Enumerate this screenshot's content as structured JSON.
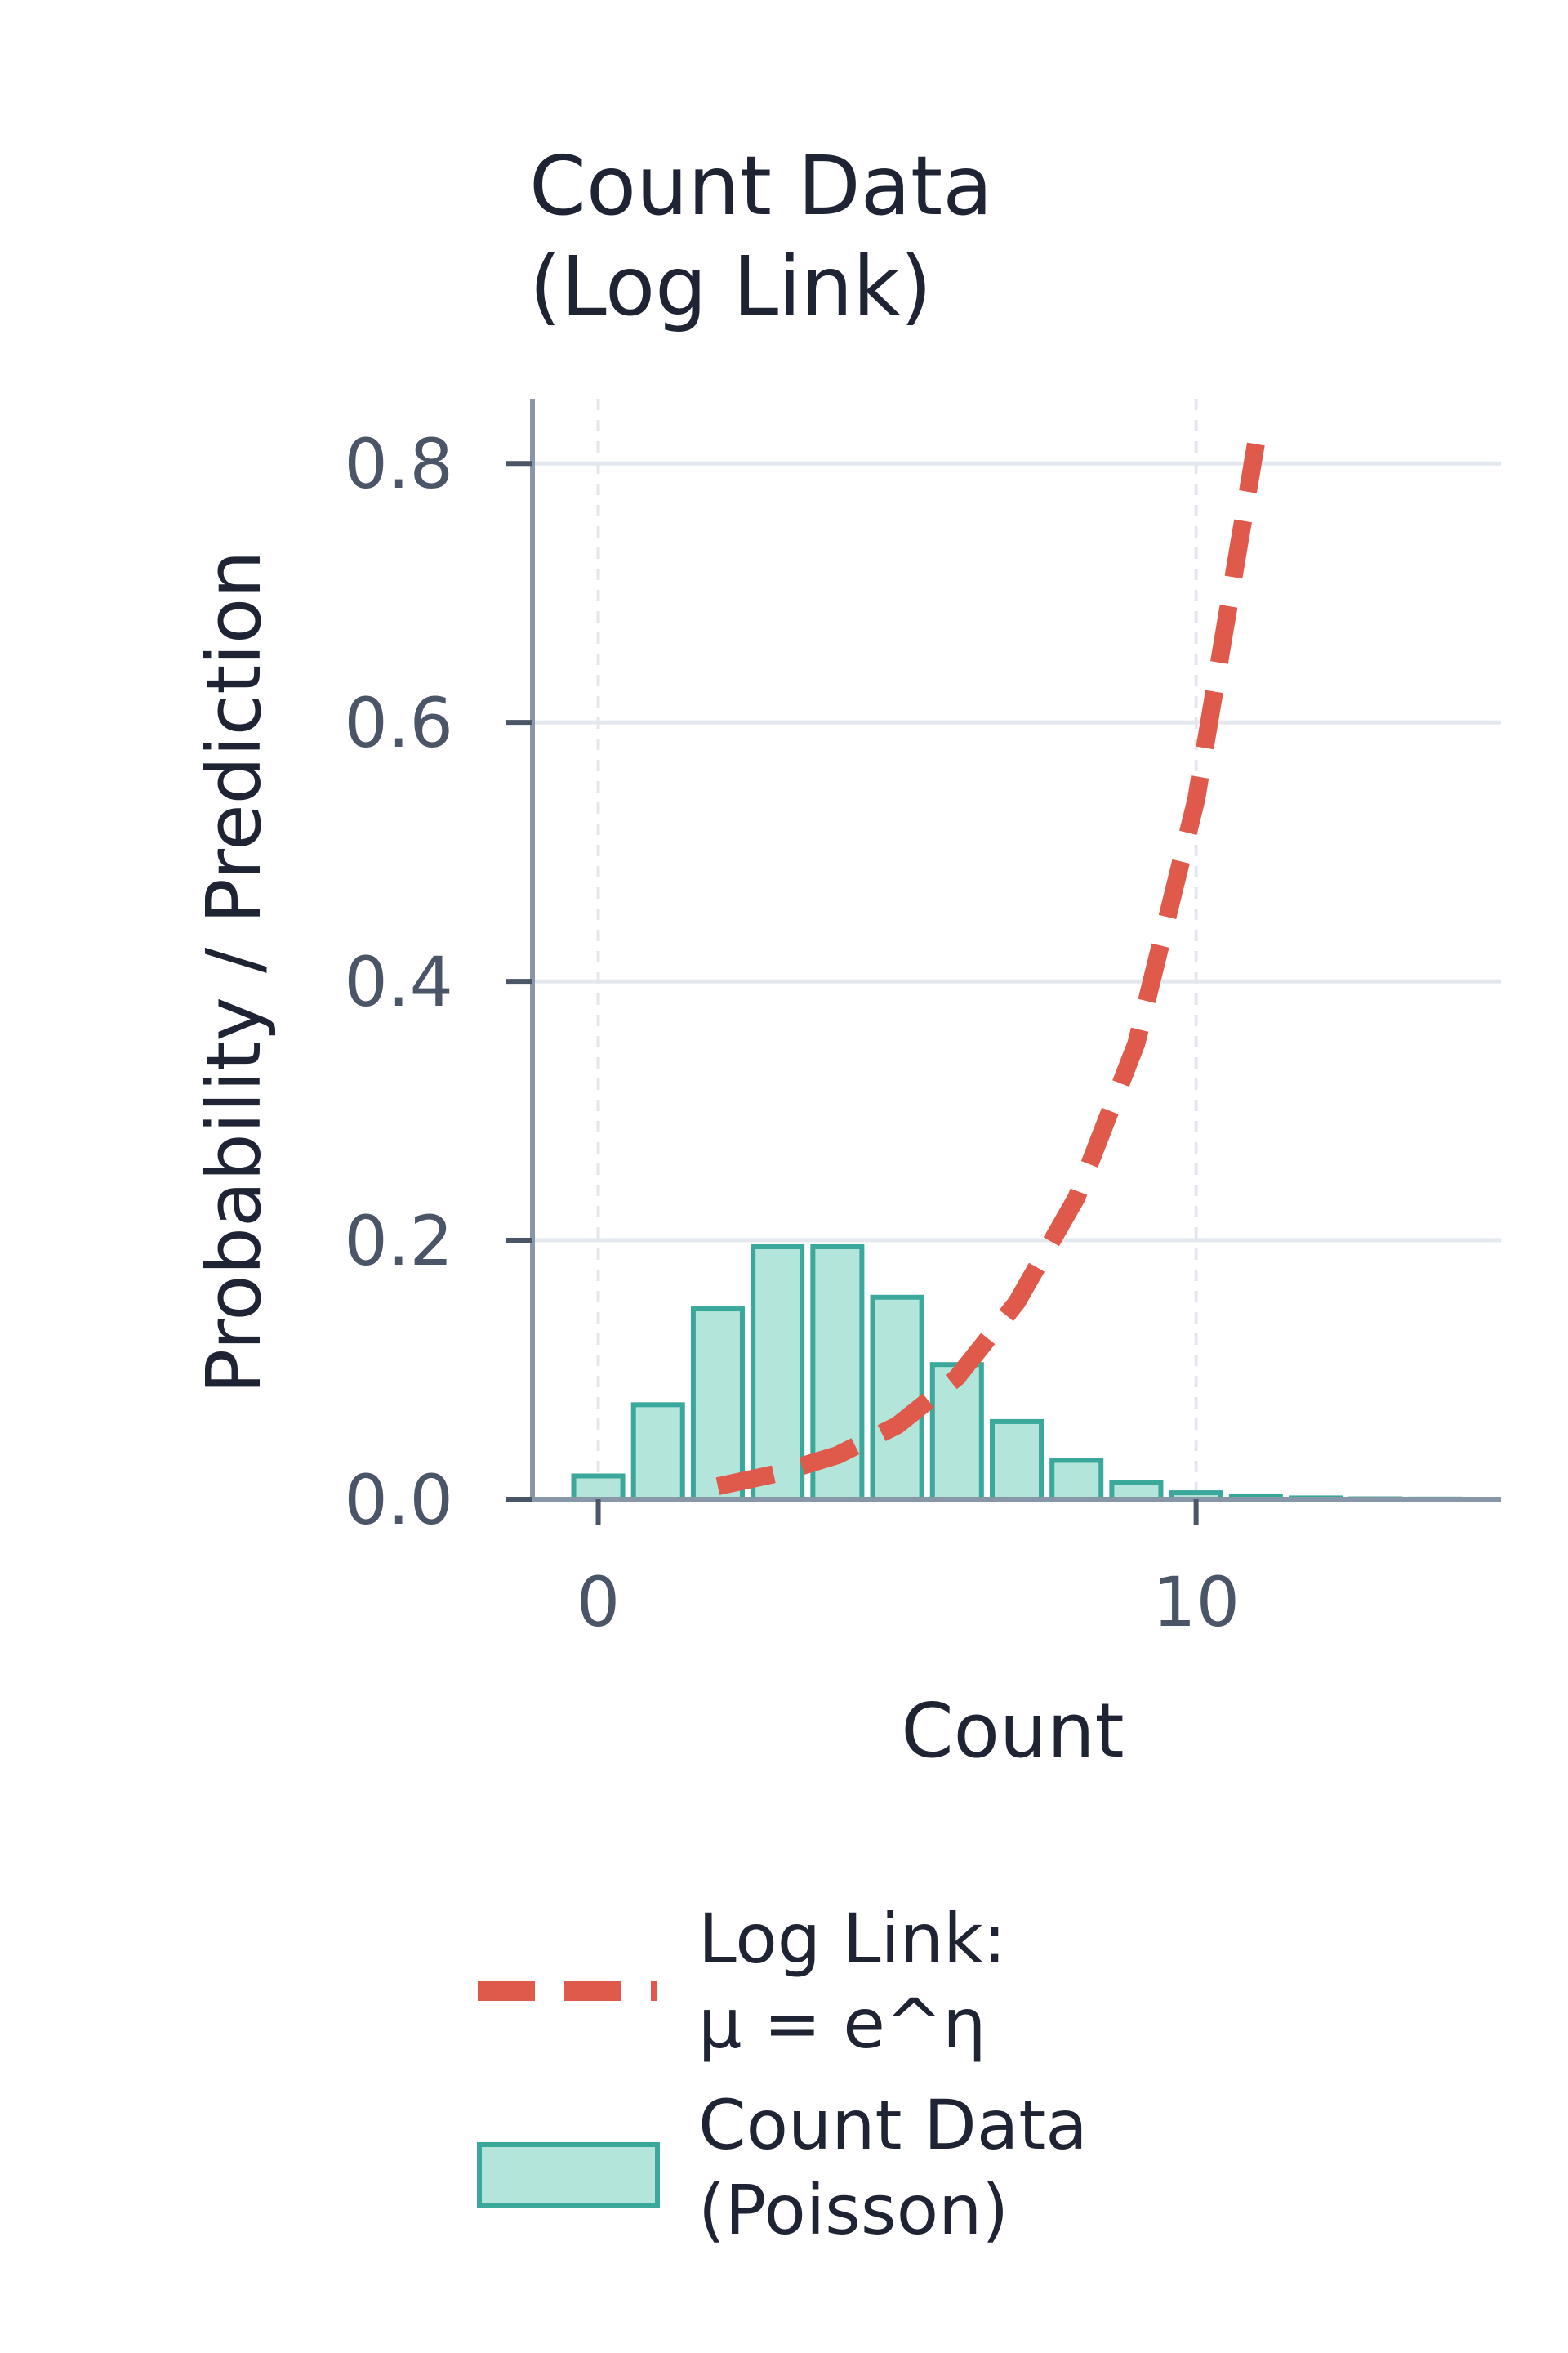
{
  "chart_data": {
    "type": "bar",
    "title": [
      "Count Data",
      "(Log Link)"
    ],
    "xlabel": "Count",
    "ylabel": "Probability / Prediction",
    "xlim": [
      -1.1,
      15.1
    ],
    "ylim": [
      0,
      0.85
    ],
    "x_ticks": [
      0,
      10
    ],
    "y_ticks": [
      0.0,
      0.2,
      0.4,
      0.6,
      0.8
    ],
    "y_tick_labels": [
      "0.0",
      "0.2",
      "0.4",
      "0.6",
      "0.8"
    ],
    "x_tick_labels": [
      "0",
      "10"
    ],
    "grid": {
      "y": true,
      "x": true
    },
    "legend_position": "bottom",
    "series": [
      {
        "kind": "bar",
        "legend": [
          "Count Data",
          "(Poisson)"
        ],
        "x": [
          0,
          1,
          2,
          3,
          4,
          5,
          6,
          7,
          8,
          9,
          10,
          11,
          12,
          13,
          14,
          15
        ],
        "values": [
          0.018,
          0.073,
          0.147,
          0.195,
          0.195,
          0.156,
          0.104,
          0.06,
          0.03,
          0.013,
          0.005,
          0.002,
          0.001,
          0.0003,
          0.0001,
          0.0
        ],
        "color": "#b3e5da",
        "edge_color": "#3aa89a"
      },
      {
        "kind": "line",
        "style": "dashed",
        "legend": [
          "Log Link:",
          "μ = e^η"
        ],
        "x": [
          2.0,
          3.0,
          4.0,
          5.0,
          6.0,
          7.0,
          8.0,
          9.0,
          10.0,
          11.0
        ],
        "values": [
          0.01,
          0.02,
          0.034,
          0.057,
          0.094,
          0.152,
          0.233,
          0.352,
          0.54,
          0.815
        ],
        "color": "#e05a4b"
      }
    ]
  }
}
